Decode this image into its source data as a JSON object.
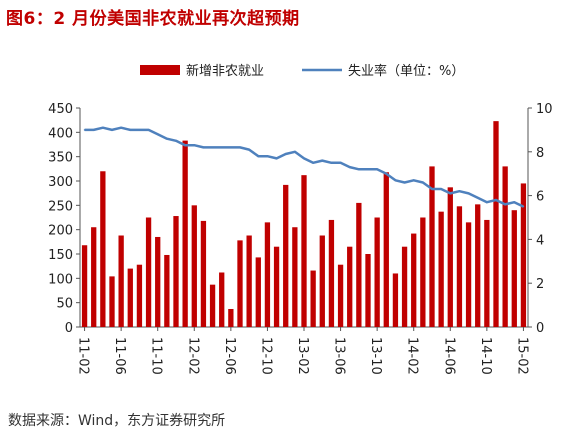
{
  "title": "图6：2 月份美国非农就业再次超预期",
  "source": "数据来源：Wind，东方证券研究所",
  "chart_data": {
    "type": "bar+line",
    "categories": [
      "11-02",
      "11-03",
      "11-04",
      "11-05",
      "11-06",
      "11-07",
      "11-08",
      "11-09",
      "11-10",
      "11-11",
      "11-12",
      "12-01",
      "12-02",
      "12-03",
      "12-04",
      "12-05",
      "12-06",
      "12-07",
      "12-08",
      "12-09",
      "12-10",
      "12-11",
      "12-12",
      "13-01",
      "13-02",
      "13-03",
      "13-04",
      "13-05",
      "13-06",
      "13-07",
      "13-08",
      "13-09",
      "13-10",
      "13-11",
      "13-12",
      "14-01",
      "14-02",
      "14-03",
      "14-04",
      "14-05",
      "14-06",
      "14-07",
      "14-08",
      "14-09",
      "14-10",
      "14-11",
      "14-12",
      "15-01",
      "15-02"
    ],
    "x_tick_labels": [
      "11-02",
      "11-06",
      "11-10",
      "12-02",
      "12-06",
      "12-10",
      "13-02",
      "13-06",
      "13-10",
      "14-02",
      "14-06",
      "14-10",
      "15-02"
    ],
    "series": [
      {
        "name": "新增非农就业",
        "type": "bar",
        "axis": "left",
        "color": "#c00000",
        "values": [
          168,
          205,
          320,
          104,
          188,
          120,
          128,
          225,
          185,
          148,
          228,
          383,
          250,
          218,
          87,
          112,
          37,
          178,
          188,
          143,
          215,
          165,
          292,
          205,
          312,
          116,
          188,
          220,
          128,
          165,
          255,
          150,
          225,
          318,
          110,
          165,
          192,
          225,
          330,
          237,
          287,
          248,
          215,
          252,
          220,
          423,
          330,
          240,
          295
        ]
      },
      {
        "name": "失业率（单位：%）",
        "type": "line",
        "axis": "right",
        "color": "#4f81bd",
        "values": [
          9.0,
          9.0,
          9.1,
          9.0,
          9.1,
          9.0,
          9.0,
          9.0,
          8.8,
          8.6,
          8.5,
          8.3,
          8.3,
          8.2,
          8.2,
          8.2,
          8.2,
          8.2,
          8.1,
          7.8,
          7.8,
          7.7,
          7.9,
          8.0,
          7.7,
          7.5,
          7.6,
          7.5,
          7.5,
          7.3,
          7.2,
          7.2,
          7.2,
          7.0,
          6.7,
          6.6,
          6.7,
          6.6,
          6.3,
          6.3,
          6.1,
          6.2,
          6.1,
          5.9,
          5.7,
          5.8,
          5.6,
          5.7,
          5.5
        ]
      }
    ],
    "y_left": {
      "min": 0,
      "max": 450,
      "ticks": [
        0,
        50,
        100,
        150,
        200,
        250,
        300,
        350,
        400,
        450
      ]
    },
    "y_right": {
      "min": 0,
      "max": 10,
      "ticks": [
        0,
        2,
        4,
        6,
        8,
        10
      ]
    },
    "legend_position": "top",
    "grid": false
  }
}
